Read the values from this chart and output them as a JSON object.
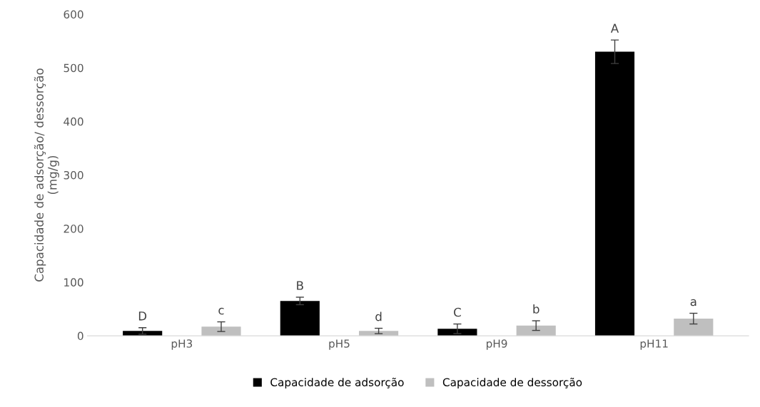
{
  "chart_data": {
    "type": "bar",
    "ylabel": "Capacidade de adsorção/ dessorção\n(mg/g)",
    "categories": [
      "pH3",
      "pH5",
      "pH9",
      "pH11"
    ],
    "series": [
      {
        "name": "Capacidade de adsorção",
        "color": "#000000",
        "values": [
          9,
          65,
          13,
          530
        ],
        "errors": [
          6,
          7,
          9,
          22
        ],
        "value_labels": [
          "D",
          "B",
          "C",
          "A"
        ]
      },
      {
        "name": "Capacidade de dessorção",
        "color": "#bfbfbf",
        "values": [
          17,
          9,
          19,
          32
        ],
        "errors": [
          9,
          5,
          9,
          10
        ],
        "value_labels": [
          "c",
          "d",
          "b",
          "a"
        ]
      }
    ],
    "ylim": [
      0,
      600
    ],
    "yticks": [
      0,
      100,
      200,
      300,
      400,
      500,
      600
    ],
    "grid": false,
    "legend": "bottom"
  }
}
